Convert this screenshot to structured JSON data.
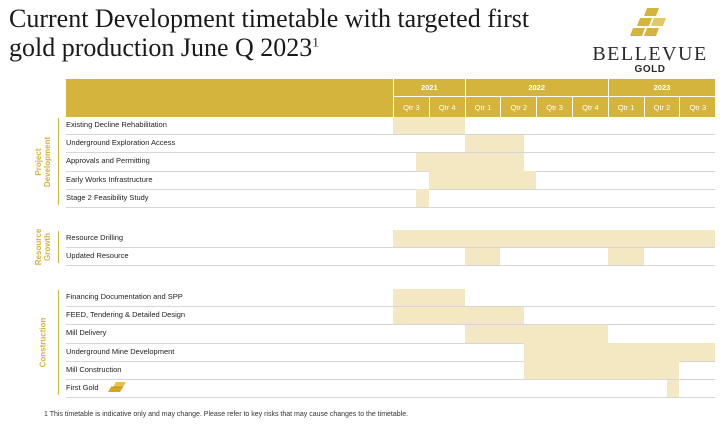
{
  "title": {
    "main": "Current Development timetable with targeted first gold production June Q 2023",
    "sup": "1"
  },
  "logo": {
    "name": "BELLEVUE",
    "sub": "GOLD",
    "brand_color": "#d4b43c"
  },
  "colors": {
    "header": "#d4b43c",
    "bar": "#f3e8c1",
    "section_text": "#d4b43c"
  },
  "years": [
    {
      "label": "2021",
      "quarters": 2
    },
    {
      "label": "2022",
      "quarters": 4
    },
    {
      "label": "2023",
      "quarters": 3
    }
  ],
  "quarters": [
    "Qtr 3",
    "Qtr 4",
    "Qtr 1",
    "Qtr 2",
    "Qtr 3",
    "Qtr 4",
    "Qtr 1",
    "Qtr 2",
    "Qtr 3"
  ],
  "sections": [
    {
      "name": "Project Development",
      "tasks": [
        {
          "label": "Existing Decline Rehabilitation",
          "bars": [
            [
              0,
              2
            ]
          ]
        },
        {
          "label": "Underground Exploration Access",
          "bars": [
            [
              2,
              3.65
            ]
          ]
        },
        {
          "label": "Approvals and Permitting",
          "bars": [
            [
              0.65,
              3.65
            ]
          ]
        },
        {
          "label": "Early Works Infrastructure",
          "bars": [
            [
              1,
              4
            ]
          ]
        },
        {
          "label": "Stage 2 Feasibility Study",
          "bars": [
            [
              0.65,
              1
            ]
          ]
        }
      ]
    },
    {
      "name": "Resource Growth",
      "tasks": [
        {
          "label": "Resource Drilling",
          "bars": [
            [
              0,
              9
            ]
          ]
        },
        {
          "label": "Updated Resource",
          "bars": [
            [
              2,
              3
            ],
            [
              6,
              7
            ]
          ]
        }
      ]
    },
    {
      "name": "Construction",
      "tasks": [
        {
          "label": "Financing Documentation and SPP",
          "bars": [
            [
              0,
              2
            ]
          ]
        },
        {
          "label": "FEED, Tendering & Detailed Design",
          "bars": [
            [
              0,
              3.65
            ]
          ]
        },
        {
          "label": "Mill Delivery",
          "bars": [
            [
              2,
              6
            ]
          ]
        },
        {
          "label": "Underground Mine Development",
          "bars": [
            [
              3.65,
              9
            ]
          ]
        },
        {
          "label": "Mill Construction",
          "bars": [
            [
              3.65,
              8
            ]
          ]
        },
        {
          "label": "First Gold",
          "bars": [
            [
              7.65,
              8
            ]
          ],
          "icon": "gold-bar-icon"
        }
      ]
    }
  ],
  "footnote": "1  This timetable is indicative only and may change. Please refer to key risks that may cause changes to the timetable."
}
